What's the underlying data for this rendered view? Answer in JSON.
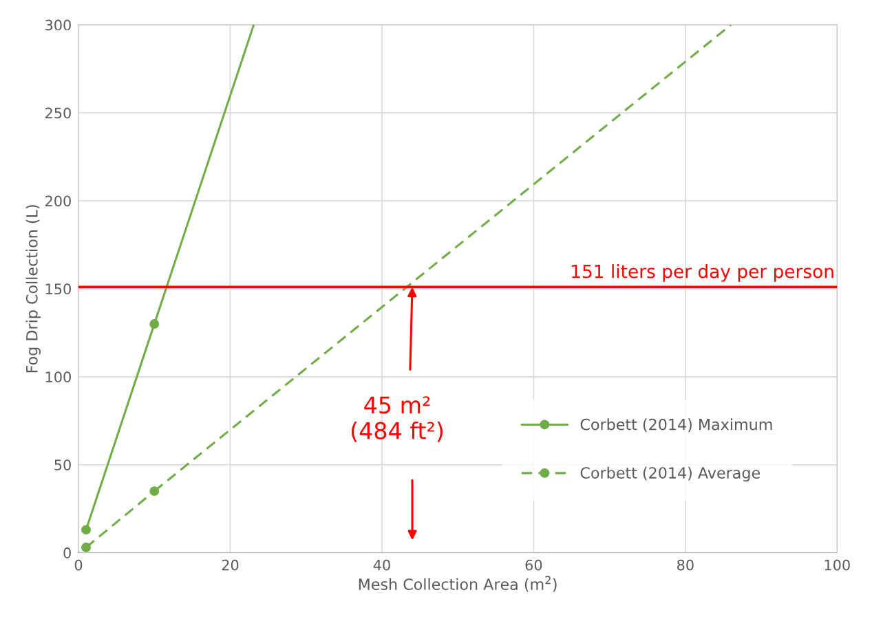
{
  "chart_data": {
    "type": "line",
    "xlabel": "Mesh Collection Area (m$^{2}$)",
    "ylabel": "Fog Drip Collection (L)",
    "xlim": [
      0,
      100
    ],
    "xticks": [
      0,
      20,
      40,
      60,
      80,
      100
    ],
    "ylim": [
      0,
      300
    ],
    "yticks": [
      0,
      50,
      100,
      150,
      200,
      250,
      300
    ],
    "grid": true,
    "legend": "bottom right",
    "series": [
      {
        "name": "Corbett (2014) Maximum",
        "color": "#70ad47",
        "x": [
          1,
          10
        ],
        "values": [
          13,
          130
        ],
        "marker": "circle",
        "line_style": "solid"
      },
      {
        "name": "Corbett (2014) Average",
        "color": "#70ad47",
        "x": [
          1,
          10
        ],
        "values": [
          3,
          35
        ],
        "marker": "circle",
        "line_style": "dashed"
      },
      {
        "type": "line",
        "color": "#70ad47",
        "x": [
          10,
          23.1
        ],
        "values": [
          130,
          300
        ],
        "marker": "none",
        "line_style": "solid"
      },
      {
        "type": "line",
        "color": "#70ad47",
        "x": [
          10,
          86
        ],
        "values": [
          35,
          300
        ],
        "marker": "none",
        "line_style": "dashed"
      }
    ],
    "ref_lines": [
      {
        "axis": "y",
        "value": 151,
        "label": "151 liters per day per person",
        "color": "#ff0000",
        "line_style": "solid"
      }
    ],
    "annotations": [
      {
        "text": "45 m²\n(484 ft²)",
        "x": 44,
        "y": 151
      }
    ]
  }
}
